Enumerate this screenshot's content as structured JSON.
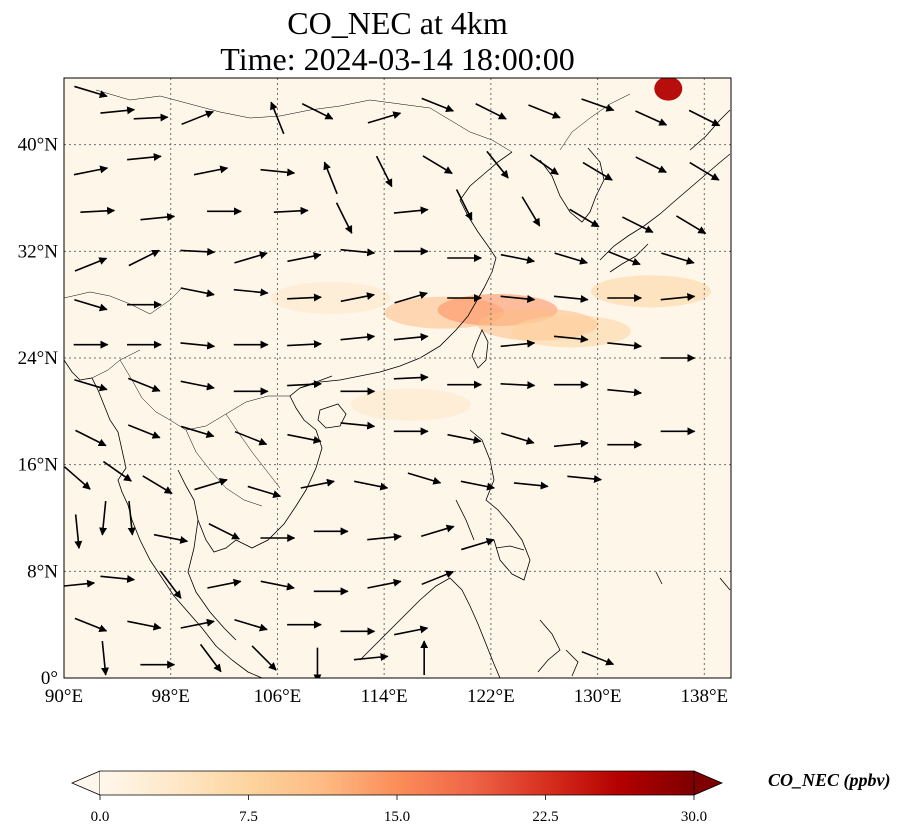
{
  "title": {
    "line1": "CO_NEC at 4km",
    "line2": "Time: 2024-03-14 18:00:00"
  },
  "map": {
    "lon_range": [
      90,
      140
    ],
    "lat_range": [
      0,
      45
    ],
    "lon_ticks": [
      {
        "value": 90,
        "label": "90°E"
      },
      {
        "value": 98,
        "label": "98°E"
      },
      {
        "value": 106,
        "label": "106°E"
      },
      {
        "value": 114,
        "label": "114°E"
      },
      {
        "value": 122,
        "label": "122°E"
      },
      {
        "value": 130,
        "label": "130°E"
      },
      {
        "value": 138,
        "label": "138°E"
      }
    ],
    "lat_ticks": [
      {
        "value": 0,
        "label": "0°"
      },
      {
        "value": 8,
        "label": "8°N"
      },
      {
        "value": 16,
        "label": "16°N"
      },
      {
        "value": 24,
        "label": "24°N"
      },
      {
        "value": 32,
        "label": "32°N"
      },
      {
        "value": 40,
        "label": "40°N"
      }
    ],
    "gridlines": true,
    "features": [
      "coastlines",
      "borders"
    ]
  },
  "colorbar": {
    "label": "CO_NEC (ppbv)",
    "colormap": "OrRd",
    "min": 0,
    "max": 30,
    "extend": "both",
    "ticks": [
      {
        "value": 0,
        "label": "0.0"
      },
      {
        "value": 7.5,
        "label": "7.5"
      },
      {
        "value": 15,
        "label": "15.0"
      },
      {
        "value": 22.5,
        "label": "22.5"
      },
      {
        "value": 30,
        "label": "30.0"
      }
    ],
    "colors": [
      "#fff7ec",
      "#fee8c8",
      "#fdd49e",
      "#fdbb84",
      "#fc8d59",
      "#ef6548",
      "#d7301f",
      "#b30000",
      "#7f0000"
    ]
  },
  "field_features": [
    {
      "lon": 118.5,
      "lat": 27.4,
      "value": 12
    },
    {
      "lon": 122.5,
      "lat": 27.6,
      "value": 14
    },
    {
      "lon": 125.5,
      "lat": 26.5,
      "value": 11
    },
    {
      "lon": 128,
      "lat": 26.0,
      "value": 9
    },
    {
      "lon": 134,
      "lat": 29.0,
      "value": 6
    },
    {
      "lon": 116,
      "lat": 20.5,
      "value": 5
    },
    {
      "lon": 110,
      "lat": 28.5,
      "value": 4
    },
    {
      "lon": 135.3,
      "lat": 44.2,
      "value": 28
    }
  ],
  "wind_vectors": [
    {
      "lon": 92,
      "lat": 44,
      "u": 1.0,
      "v": -0.3
    },
    {
      "lon": 94,
      "lat": 42.5,
      "u": 1.0,
      "v": 0.1
    },
    {
      "lon": 96.5,
      "lat": 42,
      "u": 1.0,
      "v": 0.05
    },
    {
      "lon": 100,
      "lat": 42,
      "u": 1.0,
      "v": 0.4
    },
    {
      "lon": 106,
      "lat": 42,
      "u": -0.4,
      "v": 1.0
    },
    {
      "lon": 109,
      "lat": 42.5,
      "u": 1.0,
      "v": -0.5
    },
    {
      "lon": 114,
      "lat": 42,
      "u": 1.0,
      "v": 0.3
    },
    {
      "lon": 118,
      "lat": 43,
      "u": 1.0,
      "v": -0.4
    },
    {
      "lon": 122,
      "lat": 42.5,
      "u": 1.0,
      "v": -0.5
    },
    {
      "lon": 126,
      "lat": 42.5,
      "u": 1.0,
      "v": -0.4
    },
    {
      "lon": 130,
      "lat": 43,
      "u": 1.0,
      "v": -0.35
    },
    {
      "lon": 134,
      "lat": 42,
      "u": 1.0,
      "v": -0.45
    },
    {
      "lon": 138,
      "lat": 42,
      "u": 1.0,
      "v": -0.5
    },
    {
      "lon": 92,
      "lat": 38,
      "u": 1.0,
      "v": 0.2
    },
    {
      "lon": 96,
      "lat": 39,
      "u": 1.0,
      "v": 0.1
    },
    {
      "lon": 101,
      "lat": 38,
      "u": 1.0,
      "v": 0.2
    },
    {
      "lon": 106,
      "lat": 38,
      "u": 1.0,
      "v": -0.1
    },
    {
      "lon": 110,
      "lat": 37.5,
      "u": -0.4,
      "v": 1.0
    },
    {
      "lon": 114,
      "lat": 38,
      "u": 0.5,
      "v": -1.0
    },
    {
      "lon": 118,
      "lat": 38.5,
      "u": 1.0,
      "v": -0.6
    },
    {
      "lon": 122.5,
      "lat": 38.5,
      "u": 0.8,
      "v": -1.0
    },
    {
      "lon": 126,
      "lat": 38.5,
      "u": 1.0,
      "v": -0.7
    },
    {
      "lon": 130,
      "lat": 38,
      "u": 1.0,
      "v": -0.6
    },
    {
      "lon": 134,
      "lat": 38.5,
      "u": 1.0,
      "v": -0.5
    },
    {
      "lon": 138,
      "lat": 38,
      "u": 1.0,
      "v": -0.6
    },
    {
      "lon": 92.5,
      "lat": 35,
      "u": 1.0,
      "v": 0.05
    },
    {
      "lon": 97,
      "lat": 34.5,
      "u": 1.0,
      "v": 0.1
    },
    {
      "lon": 102,
      "lat": 35,
      "u": 1.0,
      "v": 0.0
    },
    {
      "lon": 107,
      "lat": 35,
      "u": 1.0,
      "v": 0.05
    },
    {
      "lon": 111,
      "lat": 34.5,
      "u": 0.5,
      "v": -1.0
    },
    {
      "lon": 116,
      "lat": 35,
      "u": 1.0,
      "v": 0.1
    },
    {
      "lon": 120,
      "lat": 35.5,
      "u": 0.5,
      "v": -1.0
    },
    {
      "lon": 125,
      "lat": 35,
      "u": 0.6,
      "v": -1.0
    },
    {
      "lon": 129,
      "lat": 34.5,
      "u": 1.0,
      "v": -0.6
    },
    {
      "lon": 133,
      "lat": 34,
      "u": 1.0,
      "v": -0.5
    },
    {
      "lon": 137,
      "lat": 34,
      "u": 1.0,
      "v": -0.6
    },
    {
      "lon": 92,
      "lat": 31,
      "u": 1.0,
      "v": 0.4
    },
    {
      "lon": 96,
      "lat": 31.5,
      "u": 1.0,
      "v": 0.5
    },
    {
      "lon": 100,
      "lat": 32,
      "u": 1.0,
      "v": -0.05
    },
    {
      "lon": 104,
      "lat": 31.5,
      "u": 1.0,
      "v": 0.3
    },
    {
      "lon": 108,
      "lat": 31.5,
      "u": 1.0,
      "v": 0.2
    },
    {
      "lon": 112,
      "lat": 32,
      "u": 1.0,
      "v": -0.1
    },
    {
      "lon": 116,
      "lat": 32,
      "u": 1.0,
      "v": 0.0
    },
    {
      "lon": 120,
      "lat": 31.5,
      "u": 1.0,
      "v": 0.0
    },
    {
      "lon": 124,
      "lat": 31.5,
      "u": 1.0,
      "v": -0.2
    },
    {
      "lon": 128,
      "lat": 31.5,
      "u": 1.0,
      "v": -0.3
    },
    {
      "lon": 132,
      "lat": 31.5,
      "u": 1.0,
      "v": -0.4
    },
    {
      "lon": 136,
      "lat": 31.5,
      "u": 1.0,
      "v": -0.3
    },
    {
      "lon": 92,
      "lat": 28,
      "u": 1.0,
      "v": -0.3
    },
    {
      "lon": 96,
      "lat": 28,
      "u": 1.0,
      "v": 0.0
    },
    {
      "lon": 100,
      "lat": 29,
      "u": 1.0,
      "v": -0.2
    },
    {
      "lon": 104,
      "lat": 29,
      "u": 1.0,
      "v": -0.1
    },
    {
      "lon": 108,
      "lat": 28.5,
      "u": 1.0,
      "v": 0.05
    },
    {
      "lon": 112,
      "lat": 28.5,
      "u": 1.0,
      "v": 0.2
    },
    {
      "lon": 116,
      "lat": 28.5,
      "u": 1.0,
      "v": 0.3
    },
    {
      "lon": 120,
      "lat": 28.5,
      "u": 1.0,
      "v": 0.0
    },
    {
      "lon": 124,
      "lat": 28.5,
      "u": 1.0,
      "v": -0.1
    },
    {
      "lon": 128,
      "lat": 28.5,
      "u": 1.0,
      "v": -0.1
    },
    {
      "lon": 132,
      "lat": 28.5,
      "u": 1.0,
      "v": 0.0
    },
    {
      "lon": 136,
      "lat": 28.5,
      "u": 1.0,
      "v": 0.1
    },
    {
      "lon": 92,
      "lat": 25,
      "u": 1.0,
      "v": 0.0
    },
    {
      "lon": 96,
      "lat": 25,
      "u": 1.0,
      "v": 0.0
    },
    {
      "lon": 100,
      "lat": 25,
      "u": 1.0,
      "v": -0.1
    },
    {
      "lon": 104,
      "lat": 25,
      "u": 1.0,
      "v": 0.0
    },
    {
      "lon": 108,
      "lat": 25,
      "u": 1.0,
      "v": 0.05
    },
    {
      "lon": 112,
      "lat": 25.5,
      "u": 1.0,
      "v": 0.1
    },
    {
      "lon": 116,
      "lat": 25.5,
      "u": 1.0,
      "v": 0.1
    },
    {
      "lon": 124,
      "lat": 25,
      "u": 1.0,
      "v": 0.1
    },
    {
      "lon": 128,
      "lat": 25.5,
      "u": 1.0,
      "v": -0.1
    },
    {
      "lon": 132,
      "lat": 25,
      "u": 1.0,
      "v": -0.1
    },
    {
      "lon": 136,
      "lat": 24,
      "u": 1.0,
      "v": 0.0
    },
    {
      "lon": 92,
      "lat": 22,
      "u": 1.0,
      "v": -0.3
    },
    {
      "lon": 96,
      "lat": 22,
      "u": 1.0,
      "v": -0.4
    },
    {
      "lon": 100,
      "lat": 22,
      "u": 1.0,
      "v": -0.2
    },
    {
      "lon": 104,
      "lat": 21.5,
      "u": 1.0,
      "v": 0.0
    },
    {
      "lon": 108,
      "lat": 22,
      "u": 1.0,
      "v": 0.05
    },
    {
      "lon": 112,
      "lat": 21.5,
      "u": 1.0,
      "v": 0.0
    },
    {
      "lon": 116,
      "lat": 22.5,
      "u": 1.0,
      "v": 0.05
    },
    {
      "lon": 120,
      "lat": 22,
      "u": 1.0,
      "v": 0.0
    },
    {
      "lon": 124,
      "lat": 22,
      "u": 1.0,
      "v": -0.05
    },
    {
      "lon": 128,
      "lat": 22,
      "u": 1.0,
      "v": 0.0
    },
    {
      "lon": 132,
      "lat": 21.5,
      "u": 1.0,
      "v": -0.1
    },
    {
      "lon": 92,
      "lat": 18,
      "u": 1.0,
      "v": -0.5
    },
    {
      "lon": 96,
      "lat": 18.5,
      "u": 1.0,
      "v": -0.4
    },
    {
      "lon": 100,
      "lat": 18.5,
      "u": 1.0,
      "v": -0.3
    },
    {
      "lon": 104,
      "lat": 18,
      "u": 1.0,
      "v": -0.4
    },
    {
      "lon": 108,
      "lat": 18,
      "u": 1.0,
      "v": -0.2
    },
    {
      "lon": 112,
      "lat": 19,
      "u": 1.0,
      "v": -0.1
    },
    {
      "lon": 116,
      "lat": 18.5,
      "u": 1.0,
      "v": 0.0
    },
    {
      "lon": 120,
      "lat": 18,
      "u": 1.0,
      "v": -0.2
    },
    {
      "lon": 124,
      "lat": 18,
      "u": 1.0,
      "v": -0.3
    },
    {
      "lon": 128,
      "lat": 17.5,
      "u": 1.0,
      "v": 0.1
    },
    {
      "lon": 132,
      "lat": 17.5,
      "u": 1.0,
      "v": 0.0
    },
    {
      "lon": 136,
      "lat": 18.5,
      "u": 1.0,
      "v": 0.0
    },
    {
      "lon": 91,
      "lat": 15,
      "u": 0.8,
      "v": -0.7
    },
    {
      "lon": 94,
      "lat": 15.5,
      "u": 1.0,
      "v": -0.7
    },
    {
      "lon": 97,
      "lat": 14.5,
      "u": 1.0,
      "v": -0.6
    },
    {
      "lon": 101,
      "lat": 14.5,
      "u": 1.0,
      "v": 0.3
    },
    {
      "lon": 105,
      "lat": 14,
      "u": 1.0,
      "v": -0.3
    },
    {
      "lon": 109,
      "lat": 14.5,
      "u": 1.0,
      "v": 0.2
    },
    {
      "lon": 113,
      "lat": 14.5,
      "u": 1.0,
      "v": -0.2
    },
    {
      "lon": 117,
      "lat": 15,
      "u": 1.0,
      "v": -0.3
    },
    {
      "lon": 121,
      "lat": 14.5,
      "u": 1.0,
      "v": -0.2
    },
    {
      "lon": 125,
      "lat": 14.5,
      "u": 1.0,
      "v": -0.1
    },
    {
      "lon": 129,
      "lat": 15,
      "u": 1.0,
      "v": -0.1
    },
    {
      "lon": 91,
      "lat": 11,
      "u": 0.1,
      "v": -1.0
    },
    {
      "lon": 93,
      "lat": 12,
      "u": -0.1,
      "v": -1.0
    },
    {
      "lon": 95,
      "lat": 12,
      "u": 0.1,
      "v": -1.0
    },
    {
      "lon": 98,
      "lat": 10.5,
      "u": 1.0,
      "v": -0.2
    },
    {
      "lon": 102,
      "lat": 11,
      "u": 1.0,
      "v": -0.5
    },
    {
      "lon": 106,
      "lat": 10.5,
      "u": 1.0,
      "v": 0.0
    },
    {
      "lon": 110,
      "lat": 11,
      "u": 1.0,
      "v": 0.0
    },
    {
      "lon": 114,
      "lat": 10.5,
      "u": 1.0,
      "v": 0.1
    },
    {
      "lon": 118,
      "lat": 11,
      "u": 1.0,
      "v": 0.3
    },
    {
      "lon": 121,
      "lat": 10,
      "u": 1.0,
      "v": 0.3
    },
    {
      "lon": 91,
      "lat": 7,
      "u": 1.0,
      "v": 0.1
    },
    {
      "lon": 94,
      "lat": 7.5,
      "u": 1.0,
      "v": -0.1
    },
    {
      "lon": 98,
      "lat": 7,
      "u": 0.6,
      "v": -0.8
    },
    {
      "lon": 102,
      "lat": 7,
      "u": 1.0,
      "v": 0.2
    },
    {
      "lon": 106,
      "lat": 7,
      "u": 1.0,
      "v": -0.2
    },
    {
      "lon": 110,
      "lat": 6.5,
      "u": 1.0,
      "v": 0.0
    },
    {
      "lon": 114,
      "lat": 7,
      "u": 1.0,
      "v": 0.2
    },
    {
      "lon": 118,
      "lat": 7.5,
      "u": 1.0,
      "v": 0.4
    },
    {
      "lon": 92,
      "lat": 4,
      "u": 1.0,
      "v": -0.4
    },
    {
      "lon": 96,
      "lat": 4,
      "u": 1.0,
      "v": -0.2
    },
    {
      "lon": 100,
      "lat": 4,
      "u": 1.0,
      "v": 0.2
    },
    {
      "lon": 104,
      "lat": 4,
      "u": 1.0,
      "v": -0.3
    },
    {
      "lon": 108,
      "lat": 4,
      "u": 1.0,
      "v": 0.0
    },
    {
      "lon": 112,
      "lat": 3.5,
      "u": 1.0,
      "v": 0.0
    },
    {
      "lon": 116,
      "lat": 3.5,
      "u": 1.0,
      "v": 0.2
    },
    {
      "lon": 93,
      "lat": 1.5,
      "u": 0.1,
      "v": -1.0
    },
    {
      "lon": 97,
      "lat": 1,
      "u": 1.0,
      "v": 0.0
    },
    {
      "lon": 101,
      "lat": 1.5,
      "u": 0.6,
      "v": -0.8
    },
    {
      "lon": 105,
      "lat": 1.5,
      "u": 0.7,
      "v": -0.7
    },
    {
      "lon": 109,
      "lat": 1,
      "u": 0.0,
      "v": -1.0
    },
    {
      "lon": 113,
      "lat": 1.5,
      "u": 1.0,
      "v": 0.1
    },
    {
      "lon": 117,
      "lat": 1.5,
      "u": 0.0,
      "v": 1.0
    },
    {
      "lon": 130,
      "lat": 1.5,
      "u": 1.0,
      "v": -0.4
    }
  ]
}
